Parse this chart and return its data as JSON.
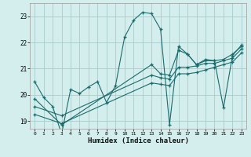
{
  "xlabel": "Humidex (Indice chaleur)",
  "bg_color": "#d4eeee",
  "grid_color": "#aacccc",
  "line_color": "#1a6b6b",
  "xlim": [
    -0.5,
    23.5
  ],
  "ylim": [
    18.7,
    23.5
  ],
  "yticks": [
    19,
    20,
    21,
    22,
    23
  ],
  "xticks": [
    0,
    1,
    2,
    3,
    4,
    5,
    6,
    7,
    8,
    9,
    10,
    11,
    12,
    13,
    14,
    15,
    16,
    17,
    18,
    19,
    20,
    21,
    22,
    23
  ],
  "line1_x": [
    0,
    1,
    2,
    3,
    4,
    5,
    6,
    7,
    8,
    9,
    10,
    11,
    12,
    13,
    14,
    15,
    16,
    17,
    18,
    19,
    20,
    21,
    22,
    23
  ],
  "line1_y": [
    20.5,
    19.9,
    19.55,
    18.5,
    20.2,
    20.05,
    20.3,
    20.5,
    19.7,
    20.35,
    22.2,
    22.85,
    23.15,
    23.1,
    22.5,
    18.85,
    21.85,
    21.55,
    21.15,
    21.35,
    21.3,
    19.5,
    21.5,
    21.9
  ],
  "line2_x": [
    0,
    3,
    13,
    14,
    15,
    16,
    17,
    18,
    19,
    20,
    21,
    22,
    23
  ],
  "line2_y": [
    19.85,
    18.85,
    21.15,
    20.8,
    20.75,
    21.7,
    21.55,
    21.15,
    21.3,
    21.3,
    21.35,
    21.55,
    21.85
  ],
  "line3_x": [
    0,
    3,
    13,
    14,
    15,
    16,
    17,
    18,
    19,
    20,
    21,
    22,
    23
  ],
  "line3_y": [
    19.55,
    19.2,
    20.75,
    20.65,
    20.6,
    21.05,
    21.05,
    21.1,
    21.2,
    21.2,
    21.3,
    21.4,
    21.75
  ],
  "line4_x": [
    0,
    3,
    13,
    14,
    15,
    16,
    17,
    18,
    19,
    20,
    21,
    22,
    23
  ],
  "line4_y": [
    19.25,
    18.9,
    20.45,
    20.4,
    20.35,
    20.8,
    20.8,
    20.85,
    20.95,
    21.05,
    21.15,
    21.25,
    21.6
  ]
}
